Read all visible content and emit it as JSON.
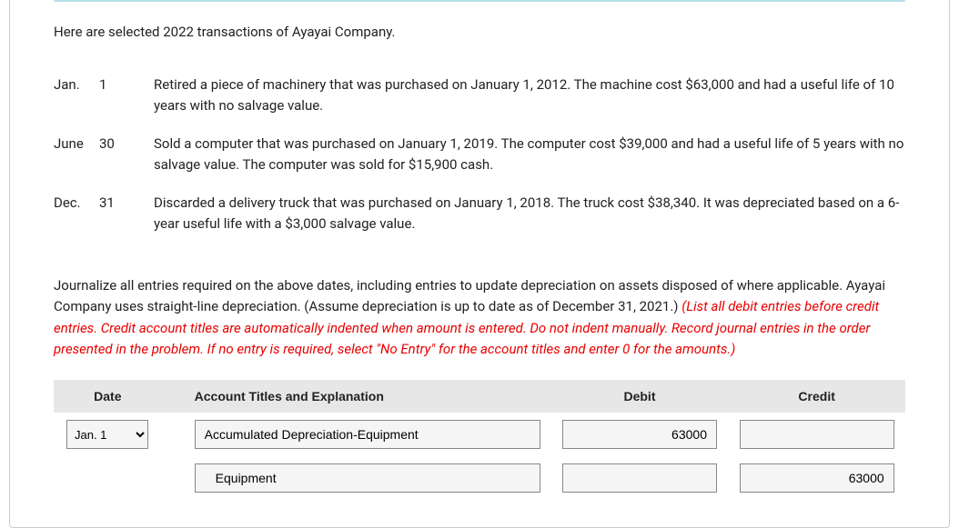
{
  "intro": "Here are selected 2022 transactions of Ayayai Company.",
  "transactions": [
    {
      "month": "Jan.",
      "day": "1",
      "desc": "Retired a piece of machinery that was purchased on January 1, 2012. The machine cost $63,000 and had a useful life of 10 years with no salvage value."
    },
    {
      "month": "June",
      "day": "30",
      "desc": "Sold a computer that was purchased on January 1, 2019. The computer cost $39,000 and had a useful life of 5 years with no salvage value. The computer was sold for $15,900 cash."
    },
    {
      "month": "Dec.",
      "day": "31",
      "desc": "Discarded a delivery truck that was purchased on January 1, 2018. The truck cost $38,340. It was depreciated based on a 6-year useful life with a $3,000 salvage value."
    }
  ],
  "instructions_plain": "Journalize all entries required on the above dates, including entries to update depreciation on assets disposed of where applicable. Ayayai Company uses straight-line depreciation. (Assume depreciation is up to date as of December 31, 2021.) ",
  "instructions_red": "(List all debit entries before credit entries. Credit account titles are automatically indented when amount is entered. Do not indent manually. Record journal entries in the order presented in the problem. If no entry is required, select \"No Entry\" for the account titles and enter 0 for the amounts.)",
  "headers": {
    "date": "Date",
    "acct": "Account Titles and Explanation",
    "debit": "Debit",
    "credit": "Credit"
  },
  "date_options": [
    "",
    "Jan. 1",
    "June 30",
    "Dec. 31"
  ],
  "rows": [
    {
      "date": "Jan. 1",
      "account": "Accumulated Depreciation-Equipment",
      "debit": "63000",
      "credit": "",
      "indent": false
    },
    {
      "date": "",
      "account": "Equipment",
      "debit": "",
      "credit": "63000",
      "indent": true
    }
  ],
  "colors": {
    "header_bg": "#e7e7e7",
    "input_bg": "#f5f5f5",
    "red": "#e60000",
    "info_border": "#b8e2e8"
  }
}
